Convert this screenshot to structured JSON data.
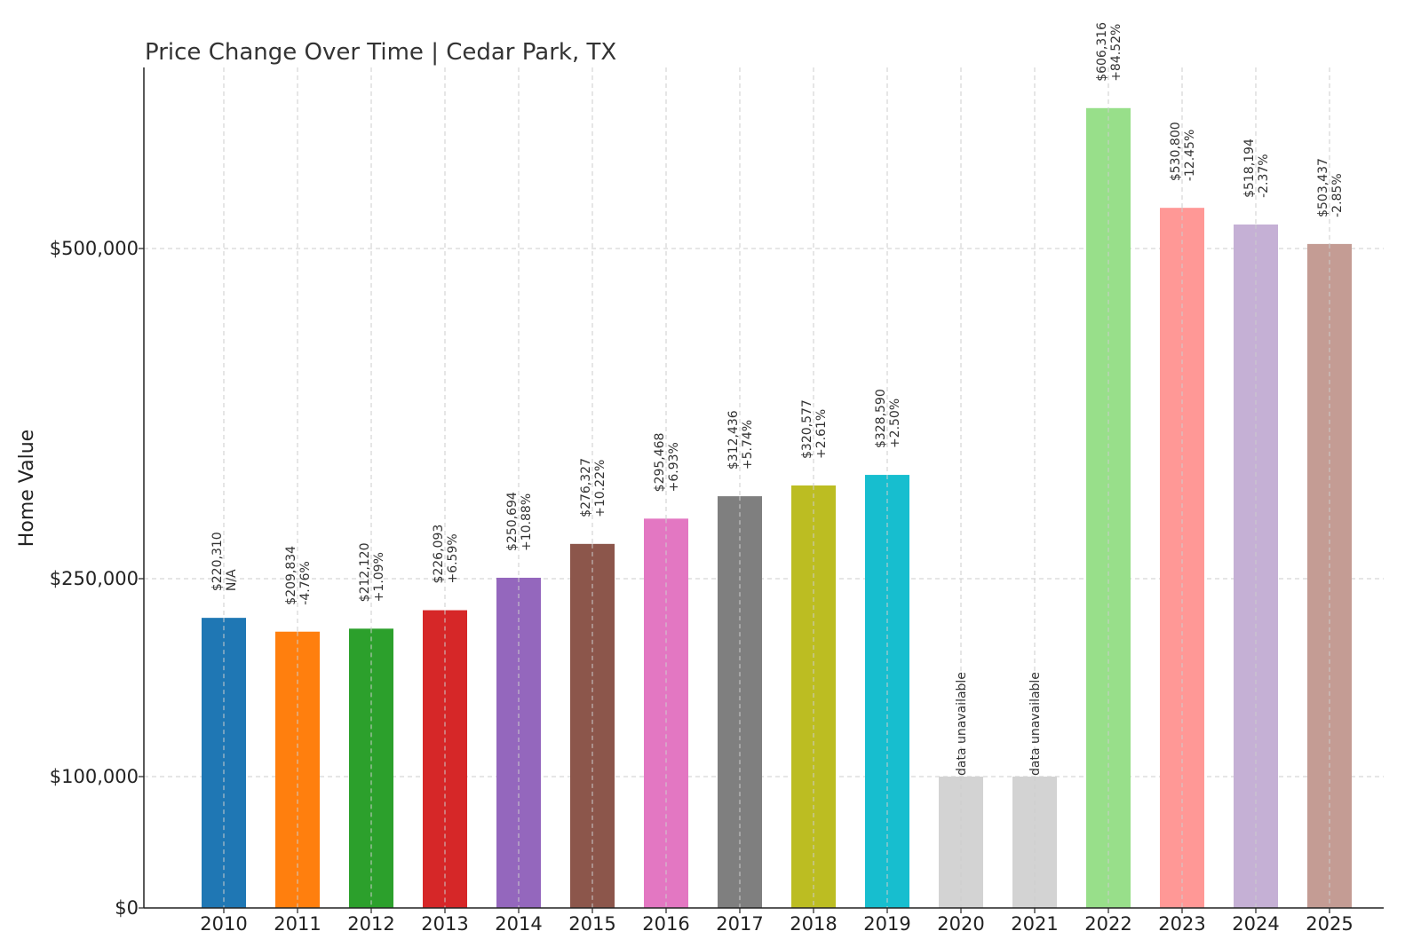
{
  "chart_data": {
    "type": "bar",
    "title": "Price Change Over Time | Cedar Park, TX",
    "xlabel": "",
    "ylabel": "Home Value",
    "y_scale": "piecewise-linear",
    "y_ticks": [
      0,
      100000,
      250000,
      500000
    ],
    "y_tick_labels": [
      "$0",
      "$100,000",
      "$250,000",
      "$500,000"
    ],
    "ylim": [
      0,
      640000
    ],
    "grid": true,
    "legend": "none",
    "categories": [
      "2010",
      "2011",
      "2012",
      "2013",
      "2014",
      "2015",
      "2016",
      "2017",
      "2018",
      "2019",
      "2020",
      "2021",
      "2022",
      "2023",
      "2024",
      "2025"
    ],
    "values": [
      220310,
      209834,
      212120,
      226093,
      250694,
      276327,
      295468,
      312436,
      320577,
      328590,
      100000,
      100000,
      606316,
      530800,
      518194,
      503437
    ],
    "value_labels": [
      "$220,310",
      "$209,834",
      "$212,120",
      "$226,093",
      "$250,694",
      "$276,327",
      "$295,468",
      "$312,436",
      "$320,577",
      "$328,590",
      "",
      "",
      "$606,316",
      "$530,800",
      "$518,194",
      "$503,437"
    ],
    "change_labels": [
      "N/A",
      "-4.76%",
      "+1.09%",
      "+6.59%",
      "+10.88%",
      "+10.22%",
      "+6.93%",
      "+5.74%",
      "+2.61%",
      "+2.50%",
      "data unavailable",
      "data unavailable",
      "+84.52%",
      "-12.45%",
      "-2.37%",
      "-2.85%"
    ],
    "colors": [
      "#1f77b4",
      "#ff7f0e",
      "#2ca02c",
      "#d62728",
      "#9467bd",
      "#8c564b",
      "#e377c2",
      "#7f7f7f",
      "#bcbd22",
      "#17becf",
      "#d3d3d3",
      "#d3d3d3",
      "#98df8a",
      "#ff9896",
      "#c5b0d5",
      "#c49c94"
    ]
  }
}
